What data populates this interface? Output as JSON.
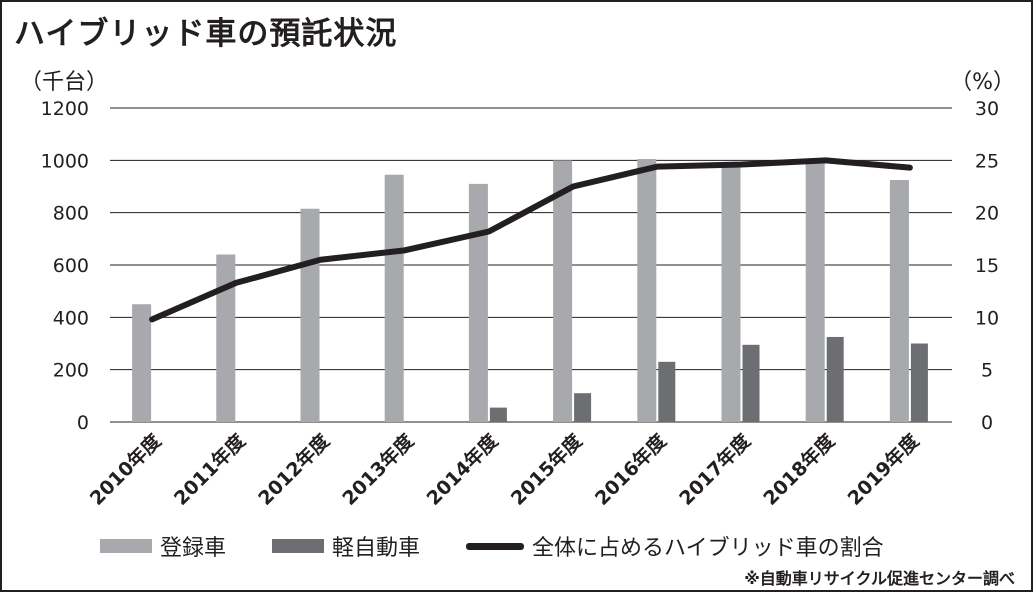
{
  "title": "ハイブリッド車の預託状況",
  "unit_left": "（千台）",
  "unit_right": "（%）",
  "source": "※自動車リサイクル促進センター調べ",
  "colors": {
    "registered": "#a7a9ac",
    "kei": "#6d6e71",
    "line": "#231f20",
    "grid": "#231f20",
    "text": "#231f20"
  },
  "chart_data": {
    "type": "bar",
    "categories": [
      "2010年度",
      "2011年度",
      "2012年度",
      "2013年度",
      "2014年度",
      "2015年度",
      "2016年度",
      "2017年度",
      "2018年度",
      "2019年度"
    ],
    "series": [
      {
        "name": "登録車",
        "type": "bar",
        "axis": "left",
        "values": [
          450,
          640,
          815,
          945,
          910,
          1000,
          1005,
          990,
          995,
          925
        ]
      },
      {
        "name": "軽自動車",
        "type": "bar",
        "axis": "left",
        "values": [
          0,
          0,
          0,
          0,
          55,
          110,
          230,
          295,
          325,
          300
        ]
      },
      {
        "name": "全体に占めるハイブリッド車の割合",
        "type": "line",
        "axis": "right",
        "values": [
          9.8,
          13.3,
          15.5,
          16.4,
          18.2,
          22.5,
          24.4,
          24.6,
          25.0,
          24.3
        ]
      }
    ],
    "y_left": {
      "ylim": [
        0,
        1200
      ],
      "ticks": [
        "0",
        "200",
        "400",
        "600",
        "800",
        "1000",
        "1200"
      ]
    },
    "y_right": {
      "ylim": [
        0,
        30
      ],
      "ticks": [
        "0",
        "5",
        "10",
        "15",
        "20",
        "25",
        "30"
      ]
    },
    "grid": true,
    "legend_position": "bottom"
  }
}
